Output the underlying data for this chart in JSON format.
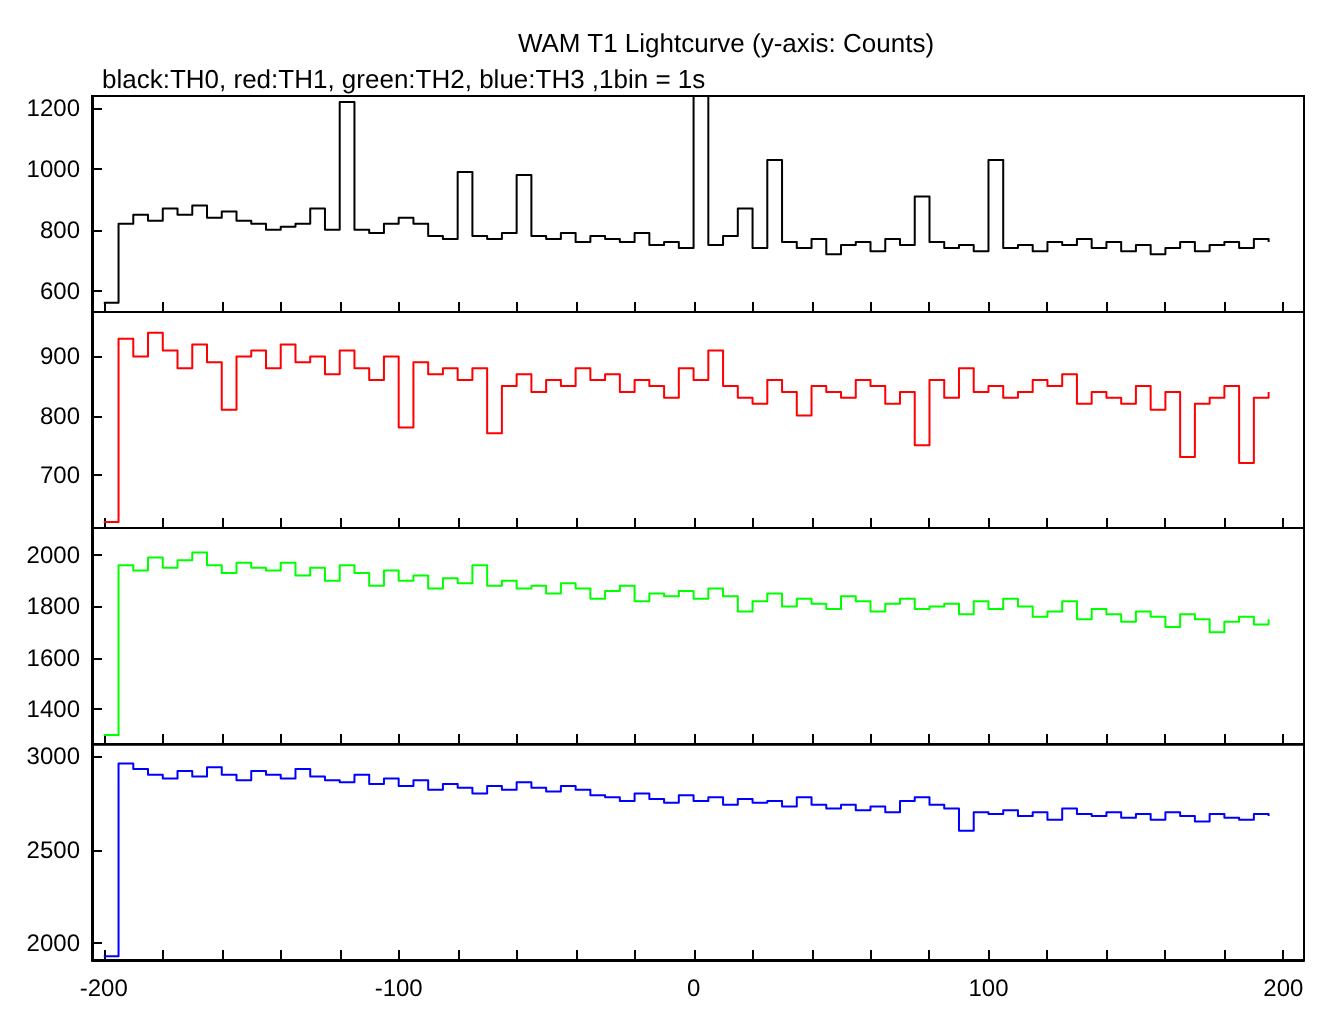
{
  "chart_data": [
    {
      "type": "step",
      "title": "WAM T1 Lightcurve (y-axis: Counts)",
      "subtitle": "black:TH0, red:TH1, green:TH2, blue:TH3 ,1bin = 1s",
      "tick_labels": "y",
      "grid": false,
      "x": [
        -200,
        -195,
        -190,
        -185,
        -180,
        -175,
        -170,
        -165,
        -160,
        -155,
        -150,
        -145,
        -140,
        -135,
        -130,
        -125,
        -120,
        -115,
        -110,
        -105,
        -100,
        -95,
        -90,
        -85,
        -80,
        -75,
        -70,
        -65,
        -60,
        -55,
        -50,
        -45,
        -40,
        -35,
        -30,
        -25,
        -20,
        -15,
        -10,
        -5,
        0,
        5,
        10,
        15,
        20,
        25,
        30,
        35,
        40,
        45,
        50,
        55,
        60,
        65,
        70,
        75,
        80,
        85,
        90,
        95,
        100,
        105,
        110,
        115,
        120,
        125,
        130,
        135,
        140,
        145,
        150,
        155,
        160,
        165,
        170,
        175,
        180,
        185,
        190,
        195
      ],
      "xlim": [
        -204,
        207
      ],
      "xticks": [
        -200,
        {
          "value": -180,
          "label": null
        },
        {
          "value": -160,
          "label": null
        },
        {
          "value": -140,
          "label": null
        },
        {
          "value": -120,
          "label": null
        },
        -100,
        {
          "value": -80,
          "label": null
        },
        {
          "value": -60,
          "label": null
        },
        {
          "value": -40,
          "label": null
        },
        {
          "value": -20,
          "label": null
        },
        0,
        {
          "value": 20,
          "label": null
        },
        {
          "value": 40,
          "label": null
        },
        {
          "value": 60,
          "label": null
        },
        {
          "value": 80,
          "label": null
        },
        100,
        {
          "value": 120,
          "label": null
        },
        {
          "value": 140,
          "label": null
        },
        {
          "value": 160,
          "label": null
        },
        {
          "value": 180,
          "label": null
        },
        200
      ],
      "ylim": [
        530,
        1240
      ],
      "yticks": [
        600,
        800,
        1000,
        1200
      ],
      "series": [
        {
          "color": "#000000",
          "values": [
            560,
            820,
            850,
            830,
            870,
            850,
            880,
            840,
            860,
            830,
            820,
            800,
            810,
            820,
            870,
            800,
            1220,
            800,
            790,
            820,
            840,
            820,
            780,
            770,
            990,
            780,
            770,
            790,
            980,
            780,
            770,
            790,
            760,
            780,
            770,
            760,
            790,
            750,
            760,
            740,
            1240,
            750,
            780,
            870,
            740,
            1030,
            760,
            740,
            770,
            720,
            750,
            760,
            730,
            770,
            750,
            910,
            760,
            740,
            750,
            730,
            1030,
            740,
            750,
            730,
            760,
            750,
            770,
            740,
            760,
            730,
            750,
            720,
            740,
            760,
            730,
            750,
            760,
            740,
            770,
            760
          ]
        }
      ]
    },
    {
      "type": "step",
      "tick_labels": "y",
      "grid": false,
      "x": [
        -200,
        -195,
        -190,
        -185,
        -180,
        -175,
        -170,
        -165,
        -160,
        -155,
        -150,
        -145,
        -140,
        -135,
        -130,
        -125,
        -120,
        -115,
        -110,
        -105,
        -100,
        -95,
        -90,
        -85,
        -80,
        -75,
        -70,
        -65,
        -60,
        -55,
        -50,
        -45,
        -40,
        -35,
        -30,
        -25,
        -20,
        -15,
        -10,
        -5,
        0,
        5,
        10,
        15,
        20,
        25,
        30,
        35,
        40,
        45,
        50,
        55,
        60,
        65,
        70,
        75,
        80,
        85,
        90,
        95,
        100,
        105,
        110,
        115,
        120,
        125,
        130,
        135,
        140,
        145,
        150,
        155,
        160,
        165,
        170,
        175,
        180,
        185,
        190,
        195
      ],
      "xlim": [
        -204,
        207
      ],
      "xticks": [
        -200,
        {
          "value": -180,
          "label": null
        },
        {
          "value": -160,
          "label": null
        },
        {
          "value": -140,
          "label": null
        },
        {
          "value": -120,
          "label": null
        },
        -100,
        {
          "value": -80,
          "label": null
        },
        {
          "value": -60,
          "label": null
        },
        {
          "value": -40,
          "label": null
        },
        {
          "value": -20,
          "label": null
        },
        0,
        {
          "value": 20,
          "label": null
        },
        {
          "value": 40,
          "label": null
        },
        {
          "value": 60,
          "label": null
        },
        {
          "value": 80,
          "label": null
        },
        100,
        {
          "value": 120,
          "label": null
        },
        {
          "value": 140,
          "label": null
        },
        {
          "value": 160,
          "label": null
        },
        {
          "value": 180,
          "label": null
        },
        200
      ],
      "ylim": [
        610,
        975
      ],
      "yticks": [
        700,
        800,
        900
      ],
      "series": [
        {
          "color": "#ff0000",
          "values": [
            620,
            930,
            900,
            940,
            910,
            880,
            920,
            890,
            810,
            900,
            910,
            880,
            920,
            890,
            900,
            870,
            910,
            880,
            860,
            900,
            780,
            890,
            870,
            880,
            860,
            880,
            770,
            850,
            870,
            840,
            860,
            850,
            880,
            860,
            870,
            840,
            860,
            850,
            830,
            880,
            860,
            910,
            850,
            830,
            820,
            860,
            840,
            800,
            850,
            840,
            830,
            860,
            850,
            820,
            840,
            750,
            860,
            830,
            880,
            840,
            850,
            830,
            840,
            860,
            850,
            870,
            820,
            840,
            830,
            820,
            850,
            810,
            840,
            730,
            820,
            830,
            850,
            720,
            830,
            840
          ]
        }
      ]
    },
    {
      "type": "step",
      "tick_labels": "y",
      "grid": false,
      "x": [
        -200,
        -195,
        -190,
        -185,
        -180,
        -175,
        -170,
        -165,
        -160,
        -155,
        -150,
        -145,
        -140,
        -135,
        -130,
        -125,
        -120,
        -115,
        -110,
        -105,
        -100,
        -95,
        -90,
        -85,
        -80,
        -75,
        -70,
        -65,
        -60,
        -55,
        -50,
        -45,
        -40,
        -35,
        -30,
        -25,
        -20,
        -15,
        -10,
        -5,
        0,
        5,
        10,
        15,
        20,
        25,
        30,
        35,
        40,
        45,
        50,
        55,
        60,
        65,
        70,
        75,
        80,
        85,
        90,
        95,
        100,
        105,
        110,
        115,
        120,
        125,
        130,
        135,
        140,
        145,
        150,
        155,
        160,
        165,
        170,
        175,
        180,
        185,
        190,
        195
      ],
      "xlim": [
        -204,
        207
      ],
      "xticks": [
        -200,
        {
          "value": -180,
          "label": null
        },
        {
          "value": -160,
          "label": null
        },
        {
          "value": -140,
          "label": null
        },
        {
          "value": -120,
          "label": null
        },
        -100,
        {
          "value": -80,
          "label": null
        },
        {
          "value": -60,
          "label": null
        },
        {
          "value": -40,
          "label": null
        },
        {
          "value": -20,
          "label": null
        },
        0,
        {
          "value": 20,
          "label": null
        },
        {
          "value": 40,
          "label": null
        },
        {
          "value": 60,
          "label": null
        },
        {
          "value": 80,
          "label": null
        },
        100,
        {
          "value": 120,
          "label": null
        },
        {
          "value": 140,
          "label": null
        },
        {
          "value": 160,
          "label": null
        },
        {
          "value": 180,
          "label": null
        },
        200
      ],
      "ylim": [
        1265,
        2105
      ],
      "yticks": [
        1400,
        1600,
        1800,
        2000
      ],
      "series": [
        {
          "color": "#00ff00",
          "values": [
            1300,
            1960,
            1940,
            1990,
            1950,
            1980,
            2010,
            1960,
            1930,
            1970,
            1950,
            1940,
            1970,
            1920,
            1950,
            1900,
            1960,
            1930,
            1880,
            1940,
            1900,
            1920,
            1870,
            1910,
            1890,
            1960,
            1880,
            1900,
            1870,
            1880,
            1850,
            1890,
            1870,
            1830,
            1860,
            1880,
            1820,
            1850,
            1840,
            1860,
            1830,
            1870,
            1840,
            1780,
            1820,
            1850,
            1800,
            1830,
            1810,
            1790,
            1840,
            1820,
            1780,
            1810,
            1830,
            1790,
            1800,
            1810,
            1770,
            1820,
            1790,
            1830,
            1800,
            1760,
            1780,
            1820,
            1750,
            1790,
            1770,
            1740,
            1780,
            1760,
            1720,
            1770,
            1750,
            1700,
            1740,
            1760,
            1730,
            1750
          ]
        }
      ]
    },
    {
      "type": "step",
      "grid": false,
      "x": [
        -200,
        -195,
        -190,
        -185,
        -180,
        -175,
        -170,
        -165,
        -160,
        -155,
        -150,
        -145,
        -140,
        -135,
        -130,
        -125,
        -120,
        -115,
        -110,
        -105,
        -100,
        -95,
        -90,
        -85,
        -80,
        -75,
        -70,
        -65,
        -60,
        -55,
        -50,
        -45,
        -40,
        -35,
        -30,
        -25,
        -20,
        -15,
        -10,
        -5,
        0,
        5,
        10,
        15,
        20,
        25,
        30,
        35,
        40,
        45,
        50,
        55,
        60,
        65,
        70,
        75,
        80,
        85,
        90,
        95,
        100,
        105,
        110,
        115,
        120,
        125,
        130,
        135,
        140,
        145,
        150,
        155,
        160,
        165,
        170,
        175,
        180,
        185,
        190,
        195
      ],
      "xlim": [
        -204,
        207
      ],
      "xticks": [
        -200,
        {
          "value": -180,
          "label": null
        },
        {
          "value": -160,
          "label": null
        },
        {
          "value": -140,
          "label": null
        },
        {
          "value": -120,
          "label": null
        },
        -100,
        {
          "value": -80,
          "label": null
        },
        {
          "value": -60,
          "label": null
        },
        {
          "value": -40,
          "label": null
        },
        {
          "value": -20,
          "label": null
        },
        0,
        {
          "value": 20,
          "label": null
        },
        {
          "value": 40,
          "label": null
        },
        {
          "value": 60,
          "label": null
        },
        {
          "value": 80,
          "label": null
        },
        100,
        {
          "value": 120,
          "label": null
        },
        {
          "value": 140,
          "label": null
        },
        {
          "value": 160,
          "label": null
        },
        {
          "value": 180,
          "label": null
        },
        200
      ],
      "ylim": [
        1910,
        3060
      ],
      "yticks": [
        2000,
        2500,
        3000
      ],
      "series": [
        {
          "color": "#0000ff",
          "values": [
            1930,
            2960,
            2930,
            2900,
            2880,
            2920,
            2890,
            2940,
            2900,
            2870,
            2920,
            2900,
            2880,
            2930,
            2890,
            2870,
            2860,
            2900,
            2850,
            2880,
            2840,
            2870,
            2820,
            2850,
            2830,
            2800,
            2840,
            2820,
            2860,
            2830,
            2810,
            2840,
            2820,
            2790,
            2780,
            2760,
            2800,
            2770,
            2750,
            2790,
            2760,
            2780,
            2740,
            2770,
            2750,
            2760,
            2730,
            2780,
            2740,
            2720,
            2740,
            2710,
            2730,
            2700,
            2760,
            2780,
            2740,
            2720,
            2600,
            2700,
            2690,
            2710,
            2680,
            2700,
            2660,
            2720,
            2690,
            2680,
            2700,
            2670,
            2690,
            2660,
            2700,
            2680,
            2650,
            2690,
            2670,
            2660,
            2690,
            2680
          ]
        }
      ]
    }
  ]
}
